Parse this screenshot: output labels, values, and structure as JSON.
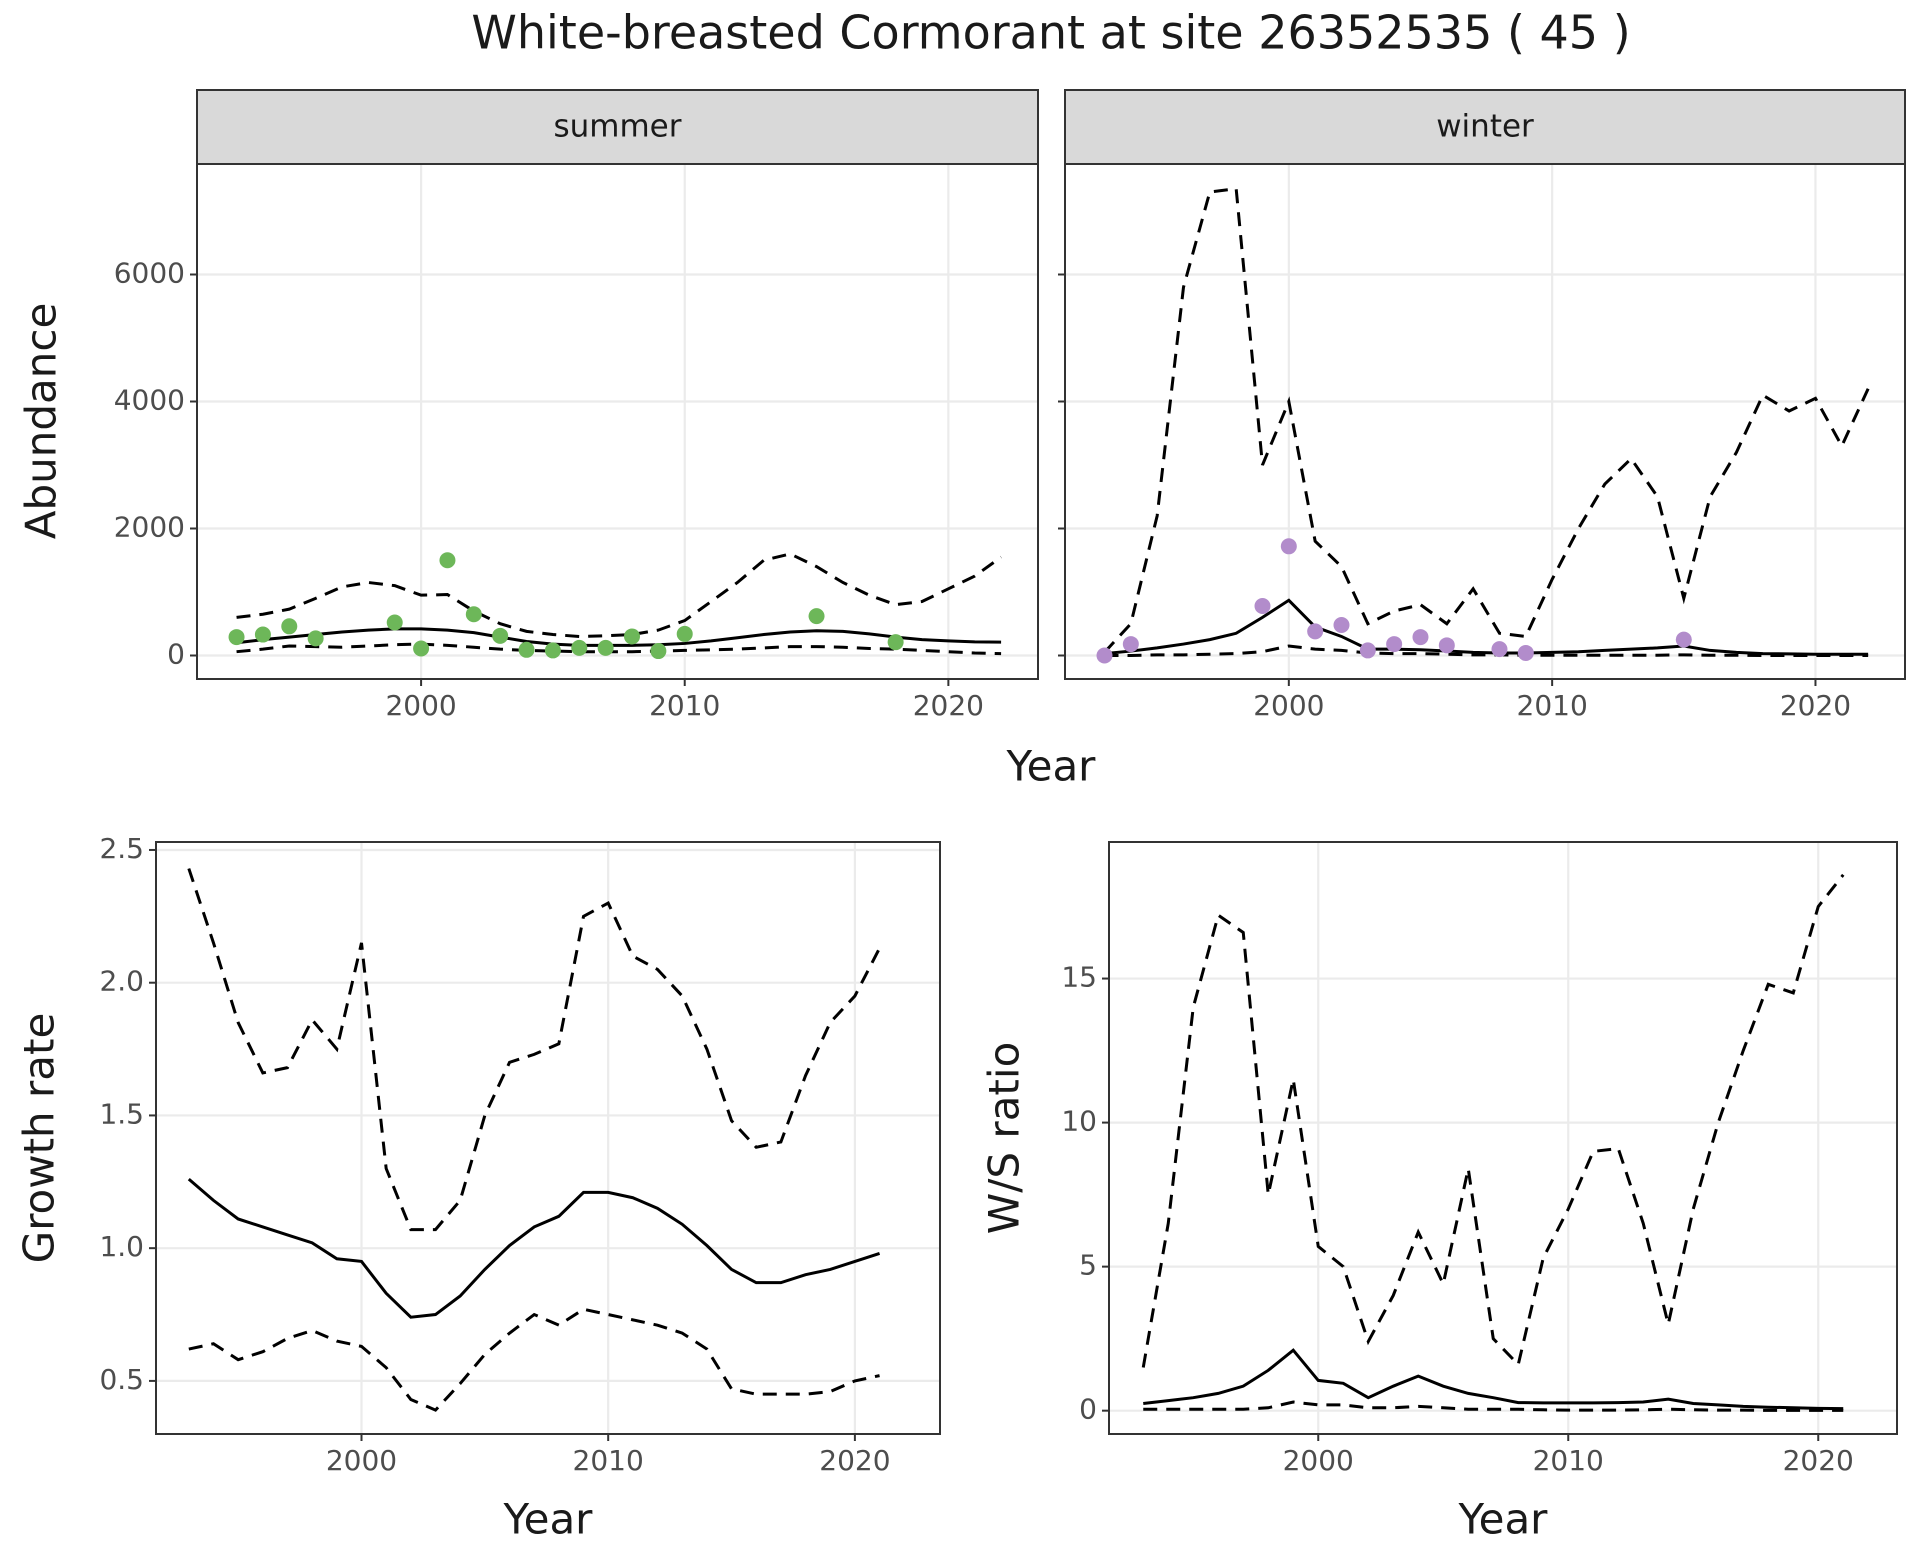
{
  "title": "White-breasted Cormorant at site 26352535 ( 45 )",
  "chart_data": [
    {
      "type": "line",
      "facet": "summer",
      "ylabel": "Abundance",
      "xlabel": "Year",
      "xlim": [
        1991.5,
        2023.4
      ],
      "xticks": [
        2000,
        2010,
        2020
      ],
      "ylim": [
        -370,
        7740
      ],
      "yticks": [
        0,
        2000,
        4000,
        6000
      ],
      "grid": true,
      "x": [
        1993,
        1994,
        1995,
        1996,
        1997,
        1998,
        1999,
        2000,
        2001,
        2002,
        2003,
        2004,
        2005,
        2006,
        2007,
        2008,
        2009,
        2010,
        2011,
        2012,
        2013,
        2014,
        2015,
        2016,
        2017,
        2018,
        2019,
        2020,
        2021,
        2022
      ],
      "series": [
        {
          "color": "#000000",
          "dash": true,
          "values": [
            600,
            650,
            730,
            900,
            1080,
            1150,
            1100,
            950,
            960,
            700,
            500,
            380,
            330,
            300,
            310,
            330,
            400,
            550,
            850,
            1150,
            1500,
            1600,
            1400,
            1150,
            950,
            800,
            850,
            1050,
            1250,
            1550
          ]
        },
        {
          "color": "#000000",
          "dash": false,
          "values": [
            200,
            250,
            290,
            330,
            370,
            400,
            420,
            420,
            400,
            360,
            290,
            220,
            180,
            160,
            160,
            160,
            170,
            190,
            230,
            280,
            330,
            370,
            390,
            380,
            340,
            290,
            250,
            230,
            215,
            210
          ]
        },
        {
          "color": "#000000",
          "dash": true,
          "values": [
            60,
            100,
            150,
            140,
            130,
            150,
            170,
            180,
            160,
            130,
            100,
            80,
            70,
            60,
            60,
            60,
            70,
            80,
            90,
            100,
            120,
            140,
            140,
            130,
            110,
            100,
            80,
            60,
            40,
            30
          ]
        }
      ],
      "points": {
        "color": "#6db759",
        "x": [
          1993,
          1994,
          1995,
          1996,
          1999,
          2000,
          2001,
          2002,
          2003,
          2004,
          2005,
          2006,
          2007,
          2008,
          2009,
          2010,
          2015,
          2018
        ],
        "values": [
          290,
          330,
          460,
          270,
          520,
          110,
          1500,
          650,
          310,
          90,
          80,
          120,
          120,
          300,
          70,
          340,
          620,
          210
        ]
      }
    },
    {
      "type": "line",
      "facet": "winter",
      "xlim": [
        1991.5,
        2023.4
      ],
      "xticks": [
        2000,
        2010,
        2020
      ],
      "ylim": [
        -370,
        7740
      ],
      "yticks": [
        0,
        2000,
        4000,
        6000
      ],
      "grid": true,
      "x": [
        1993,
        1994,
        1995,
        1996,
        1997,
        1998,
        1999,
        2000,
        2001,
        2002,
        2003,
        2004,
        2005,
        2006,
        2007,
        2008,
        2009,
        2010,
        2011,
        2012,
        2013,
        2014,
        2015,
        2016,
        2017,
        2018,
        2019,
        2020,
        2021,
        2022
      ],
      "series": [
        {
          "color": "#000000",
          "dash": true,
          "values": [
            50,
            500,
            2200,
            5800,
            7300,
            7350,
            3000,
            4000,
            1800,
            1400,
            500,
            700,
            800,
            500,
            1050,
            350,
            300,
            1200,
            2000,
            2700,
            3100,
            2500,
            900,
            2500,
            3200,
            4100,
            3850,
            4050,
            3300,
            4200
          ]
        },
        {
          "color": "#000000",
          "dash": false,
          "values": [
            30,
            70,
            120,
            180,
            250,
            350,
            600,
            870,
            450,
            300,
            100,
            100,
            90,
            70,
            50,
            40,
            40,
            50,
            60,
            80,
            100,
            120,
            150,
            80,
            50,
            30,
            25,
            20,
            20,
            20
          ]
        },
        {
          "color": "#000000",
          "dash": true,
          "values": [
            0,
            0,
            10,
            10,
            20,
            30,
            60,
            150,
            100,
            80,
            40,
            30,
            30,
            20,
            10,
            10,
            5,
            5,
            5,
            5,
            5,
            5,
            10,
            5,
            5,
            0,
            0,
            0,
            0,
            0
          ]
        }
      ],
      "points": {
        "color": "#b28ccb",
        "x": [
          1993,
          1994,
          1999,
          2000,
          2001,
          2002,
          2003,
          2004,
          2005,
          2006,
          2008,
          2009,
          2015
        ],
        "values": [
          0,
          180,
          780,
          1720,
          380,
          480,
          80,
          180,
          290,
          160,
          100,
          40,
          250
        ]
      }
    },
    {
      "type": "line",
      "ylabel": "Growth rate",
      "xlabel": "Year",
      "xlim": [
        1991.67,
        2023.45
      ],
      "xticks": [
        2000,
        2010,
        2020
      ],
      "ylim": [
        0.3,
        2.53
      ],
      "yticks": [
        0.5,
        {
          "value": 1,
          "label": "1.0"
        },
        1.5,
        {
          "value": 2,
          "label": "2.0"
        },
        2.5
      ],
      "grid": true,
      "x": [
        1993,
        1994,
        1995,
        1996,
        1997,
        1998,
        1999,
        2000,
        2001,
        2002,
        2003,
        2004,
        2005,
        2006,
        2007,
        2008,
        2009,
        2010,
        2011,
        2012,
        2013,
        2014,
        2015,
        2016,
        2017,
        2018,
        2019,
        2020,
        2021
      ],
      "series": [
        {
          "color": "#000000",
          "dash": true,
          "values": [
            2.43,
            2.15,
            1.85,
            1.66,
            1.68,
            1.86,
            1.75,
            2.15,
            1.3,
            1.07,
            1.07,
            1.18,
            1.5,
            1.7,
            1.73,
            1.77,
            2.25,
            2.3,
            2.1,
            2.05,
            1.95,
            1.75,
            1.48,
            1.38,
            1.4,
            1.65,
            1.85,
            1.95,
            2.13
          ]
        },
        {
          "color": "#000000",
          "dash": false,
          "values": [
            1.26,
            1.18,
            1.11,
            1.08,
            1.05,
            1.02,
            0.96,
            0.95,
            0.83,
            0.74,
            0.75,
            0.82,
            0.92,
            1.01,
            1.08,
            1.12,
            1.21,
            1.21,
            1.19,
            1.15,
            1.09,
            1.01,
            0.92,
            0.87,
            0.87,
            0.9,
            0.92,
            0.95,
            0.98
          ]
        },
        {
          "color": "#000000",
          "dash": true,
          "values": [
            0.62,
            0.64,
            0.58,
            0.61,
            0.66,
            0.69,
            0.65,
            0.63,
            0.55,
            0.43,
            0.39,
            0.49,
            0.6,
            0.68,
            0.75,
            0.71,
            0.77,
            0.75,
            0.73,
            0.71,
            0.68,
            0.62,
            0.47,
            0.45,
            0.45,
            0.45,
            0.46,
            0.5,
            0.52
          ]
        }
      ]
    },
    {
      "type": "line",
      "ylabel": "W/S ratio",
      "xlabel": "Year",
      "xlim": [
        1991.63,
        2023.15
      ],
      "xticks": [
        2000,
        2010,
        2020
      ],
      "ylim": [
        -0.81,
        19.74
      ],
      "yticks": [
        0,
        5,
        10,
        15
      ],
      "grid": true,
      "x": [
        1993,
        1994,
        1995,
        1996,
        1997,
        1998,
        1999,
        2000,
        2001,
        2002,
        2003,
        2004,
        2005,
        2006,
        2007,
        2008,
        2009,
        2010,
        2011,
        2012,
        2013,
        2014,
        2015,
        2016,
        2017,
        2018,
        2019,
        2020,
        2021
      ],
      "series": [
        {
          "color": "#000000",
          "dash": true,
          "values": [
            1.5,
            6.5,
            14,
            17.2,
            16.6,
            7.5,
            11.5,
            5.7,
            5,
            2.4,
            4,
            6.2,
            4.4,
            8.4,
            2.5,
            1.6,
            5.3,
            7,
            9,
            9.1,
            6.5,
            3,
            7,
            10,
            12.5,
            14.8,
            14.5,
            17.5,
            18.6
          ]
        },
        {
          "color": "#000000",
          "dash": false,
          "values": [
            0.25,
            0.35,
            0.45,
            0.6,
            0.85,
            1.4,
            2.1,
            1.05,
            0.95,
            0.45,
            0.85,
            1.2,
            0.85,
            0.6,
            0.45,
            0.28,
            0.27,
            0.27,
            0.27,
            0.28,
            0.3,
            0.4,
            0.25,
            0.2,
            0.15,
            0.12,
            0.1,
            0.08,
            0.07
          ]
        },
        {
          "color": "#000000",
          "dash": true,
          "values": [
            0.05,
            0.05,
            0.05,
            0.05,
            0.05,
            0.1,
            0.3,
            0.2,
            0.2,
            0.1,
            0.1,
            0.15,
            0.1,
            0.05,
            0.05,
            0.05,
            0.03,
            0.02,
            0.02,
            0.02,
            0.03,
            0.05,
            0.03,
            0.02,
            0.02,
            0.01,
            0.01,
            0.01,
            0.01
          ]
        }
      ]
    }
  ]
}
